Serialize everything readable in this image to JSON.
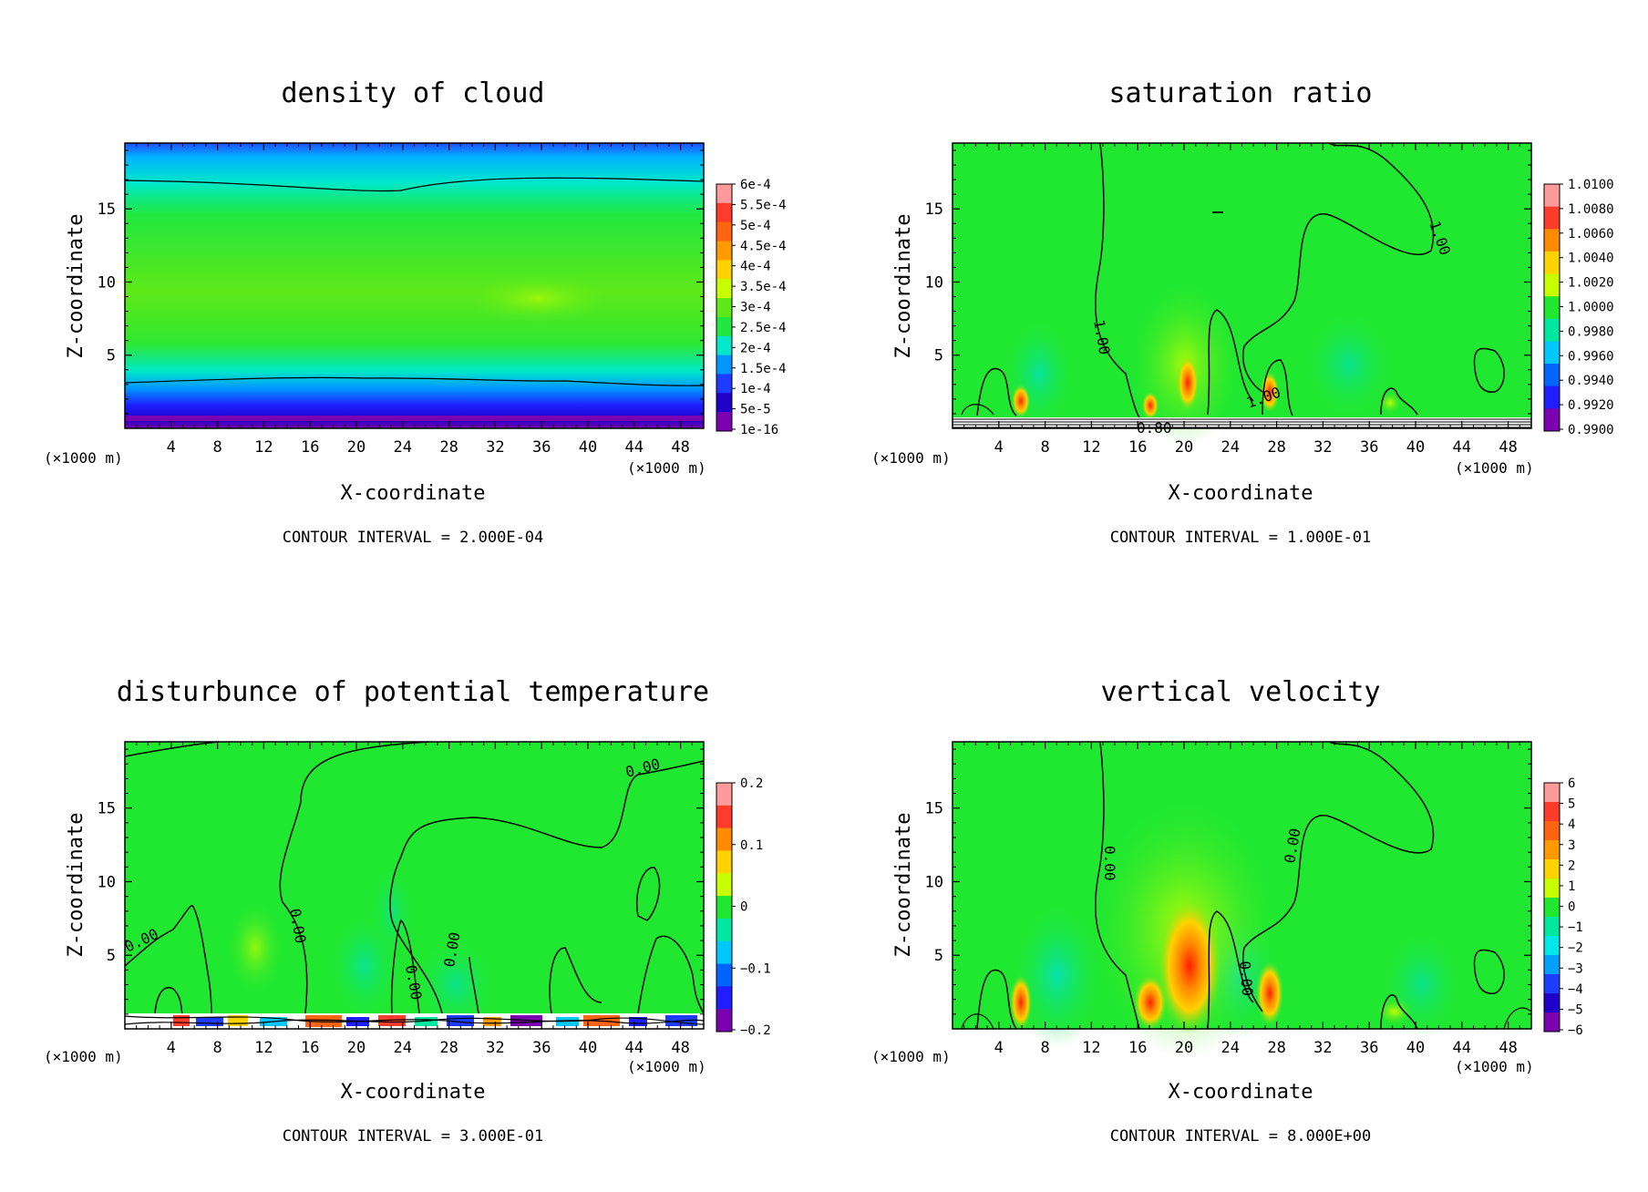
{
  "chart_data": [
    {
      "id": "p1",
      "type": "heatmap",
      "title": "density of cloud",
      "xlabel": "X-coordinate",
      "ylabel": "Z-coordinate",
      "xunit_left": "(×1000 m)",
      "xunit_right": "(×1000 m)",
      "xlim": [
        0,
        50
      ],
      "ylim": [
        0,
        19.5
      ],
      "xticks": [
        "4",
        "8",
        "12",
        "16",
        "20",
        "24",
        "28",
        "32",
        "36",
        "40",
        "44",
        "48"
      ],
      "yticks": [
        "5",
        "10",
        "15"
      ],
      "contour_interval": "CONTOUR INTERVAL = 2.000E-04",
      "colorbar": {
        "labels": [
          "6e-4",
          "5.5e-4",
          "5e-4",
          "4.5e-4",
          "4e-4",
          "3.5e-4",
          "3e-4",
          "2.5e-4",
          "2e-4",
          "1.5e-4",
          "1e-4",
          "5e-5",
          "1e-16"
        ],
        "colors": [
          "#ff9a9a",
          "#ff3c2c",
          "#ff6410",
          "#ff9a00",
          "#ffd200",
          "#c8ff00",
          "#5fe818",
          "#20e840",
          "#00e8c8",
          "#0096ff",
          "#1e3cff",
          "#1e00c8",
          "#7a00b0"
        ]
      },
      "contour_labels": []
    },
    {
      "id": "p2",
      "type": "heatmap",
      "title": "saturation ratio",
      "xlabel": "X-coordinate",
      "ylabel": "Z-coordinate",
      "xunit_left": "(×1000 m)",
      "xunit_right": "(×1000 m)",
      "xlim": [
        0,
        50
      ],
      "ylim": [
        0,
        19.5
      ],
      "xticks": [
        "4",
        "8",
        "12",
        "16",
        "20",
        "24",
        "28",
        "32",
        "36",
        "40",
        "44",
        "48"
      ],
      "yticks": [
        "5",
        "10",
        "15"
      ],
      "contour_interval": "CONTOUR INTERVAL = 1.000E-01",
      "colorbar": {
        "labels": [
          "1.0100",
          "1.0080",
          "1.0060",
          "1.0040",
          "1.0020",
          "1.0000",
          "0.9980",
          "0.9960",
          "0.9940",
          "0.9920",
          "0.9900"
        ],
        "colors": [
          "#ff9a9a",
          "#ff3c2c",
          "#ff8c00",
          "#ffd200",
          "#c8ff00",
          "#20e830",
          "#00e8a0",
          "#00c8ff",
          "#0064ff",
          "#1e1eff",
          "#7a00b0"
        ]
      },
      "contour_labels": [
        "1.00",
        "1.00",
        "1.00",
        "0.80"
      ]
    },
    {
      "id": "p3",
      "type": "heatmap",
      "title": "disturbunce of potential temperature",
      "xlabel": "X-coordinate",
      "ylabel": "Z-coordinate",
      "xunit_left": "(×1000 m)",
      "xunit_right": "(×1000 m)",
      "xlim": [
        0,
        50
      ],
      "ylim": [
        0,
        19.5
      ],
      "xticks": [
        "4",
        "8",
        "12",
        "16",
        "20",
        "24",
        "28",
        "32",
        "36",
        "40",
        "44",
        "48"
      ],
      "yticks": [
        "5",
        "10",
        "15"
      ],
      "contour_interval": "CONTOUR INTERVAL = 3.000E-01",
      "colorbar": {
        "labels": [
          "0.2",
          "0.1",
          "0",
          "−0.1",
          "−0.2"
        ],
        "colors": [
          "#ff9a9a",
          "#ff3c2c",
          "#ff8c00",
          "#ffd200",
          "#c8ff00",
          "#20e830",
          "#00e8a0",
          "#00c8ff",
          "#0064ff",
          "#1e1eff",
          "#7a00b0"
        ]
      },
      "contour_labels": [
        "0.00",
        "0.00",
        "0.00",
        "0.00",
        "0.00"
      ]
    },
    {
      "id": "p4",
      "type": "heatmap",
      "title": "vertical velocity",
      "xlabel": "X-coordinate",
      "ylabel": "Z-coordinate",
      "xunit_left": "(×1000 m)",
      "xunit_right": "(×1000 m)",
      "xlim": [
        0,
        50
      ],
      "ylim": [
        0,
        19.5
      ],
      "xticks": [
        "4",
        "8",
        "12",
        "16",
        "20",
        "24",
        "28",
        "32",
        "36",
        "40",
        "44",
        "48"
      ],
      "yticks": [
        "5",
        "10",
        "15"
      ],
      "contour_interval": "CONTOUR INTERVAL = 8.000E+00",
      "colorbar": {
        "labels": [
          "6",
          "5",
          "4",
          "3",
          "2",
          "1",
          "0",
          "−1",
          "−2",
          "−3",
          "−4",
          "−5",
          "−6"
        ],
        "colors": [
          "#ff9a9a",
          "#ff3c2c",
          "#ff6410",
          "#ff9a00",
          "#ffd200",
          "#c8ff00",
          "#20e830",
          "#00e8a0",
          "#00e8e8",
          "#00a0ff",
          "#1e3cff",
          "#1e00c8",
          "#7a00b0"
        ]
      },
      "contour_labels": [
        "0.00",
        "0.00",
        "0.00"
      ]
    }
  ]
}
